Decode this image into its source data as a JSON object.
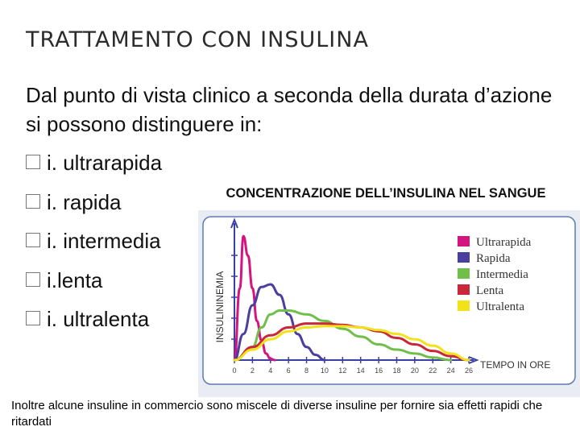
{
  "slide": {
    "title": "TRATTAMENTO CON INSULINA",
    "intro": "Dal punto di vista clinico a seconda della durata d’azione si possono distinguere in:",
    "bullets": [
      "i. ultrarapida",
      "i. rapida",
      "i. intermedia",
      "i.lenta",
      "i. ultralenta"
    ],
    "chart_heading": "CONCENTRAZIONE DELL’INSULINA NEL SANGUE",
    "footnote": "Inoltre alcune insuline in commercio sono miscele di diverse insuline per fornire sia effetti rapidi che ritardati"
  },
  "colors": {
    "ultrarapida": "#d4147f",
    "rapida": "#4a3f9e",
    "intermedia": "#6fbf4a",
    "lenta": "#c8283a",
    "ultralenta": "#f2e21a",
    "axis": "#3a3fa8"
  },
  "chart_data": {
    "type": "line",
    "ylabel": "INSULININEMIA",
    "xlabel": "TEMPO IN ORE",
    "x_ticks": [
      "0",
      "2",
      "4",
      "6",
      "8",
      "10",
      "12",
      "14",
      "16",
      "18",
      "20",
      "22",
      "24",
      "26"
    ],
    "xlim": [
      0,
      26
    ],
    "ylim": [
      0,
      1
    ],
    "legend_position": "top-right",
    "series": [
      {
        "name": "Ultrarapida",
        "color": "#d4147f",
        "x": [
          0,
          0.6,
          1,
          1.5,
          2,
          2.5,
          3,
          3.5,
          4,
          4.5
        ],
        "y": [
          0,
          0.55,
          0.95,
          0.8,
          0.55,
          0.3,
          0.15,
          0.05,
          0.01,
          0
        ]
      },
      {
        "name": "Rapida",
        "color": "#4a3f9e",
        "x": [
          0,
          1,
          2,
          3,
          4,
          5,
          6,
          7,
          8,
          9,
          10
        ],
        "y": [
          0,
          0.2,
          0.42,
          0.56,
          0.58,
          0.5,
          0.35,
          0.2,
          0.1,
          0.04,
          0
        ]
      },
      {
        "name": "Intermedia",
        "color": "#6fbf4a",
        "x": [
          0,
          2,
          3,
          4,
          5,
          6,
          8,
          10,
          12,
          14,
          16,
          18,
          20,
          22,
          24
        ],
        "y": [
          0,
          0.1,
          0.25,
          0.35,
          0.38,
          0.38,
          0.35,
          0.3,
          0.24,
          0.18,
          0.12,
          0.08,
          0.05,
          0.02,
          0
        ]
      },
      {
        "name": "Lenta",
        "color": "#c8283a",
        "x": [
          0,
          2,
          4,
          6,
          8,
          10,
          12,
          14,
          16,
          18,
          20,
          22,
          24,
          26
        ],
        "y": [
          0,
          0.1,
          0.19,
          0.25,
          0.28,
          0.28,
          0.27,
          0.25,
          0.22,
          0.17,
          0.12,
          0.07,
          0.03,
          0
        ]
      },
      {
        "name": "Ultralenta",
        "color": "#f2e21a",
        "x": [
          0,
          2,
          4,
          6,
          8,
          10,
          12,
          14,
          16,
          18,
          20,
          22,
          24,
          26
        ],
        "y": [
          0,
          0.08,
          0.16,
          0.22,
          0.25,
          0.26,
          0.26,
          0.25,
          0.23,
          0.2,
          0.16,
          0.11,
          0.05,
          0
        ]
      }
    ]
  }
}
